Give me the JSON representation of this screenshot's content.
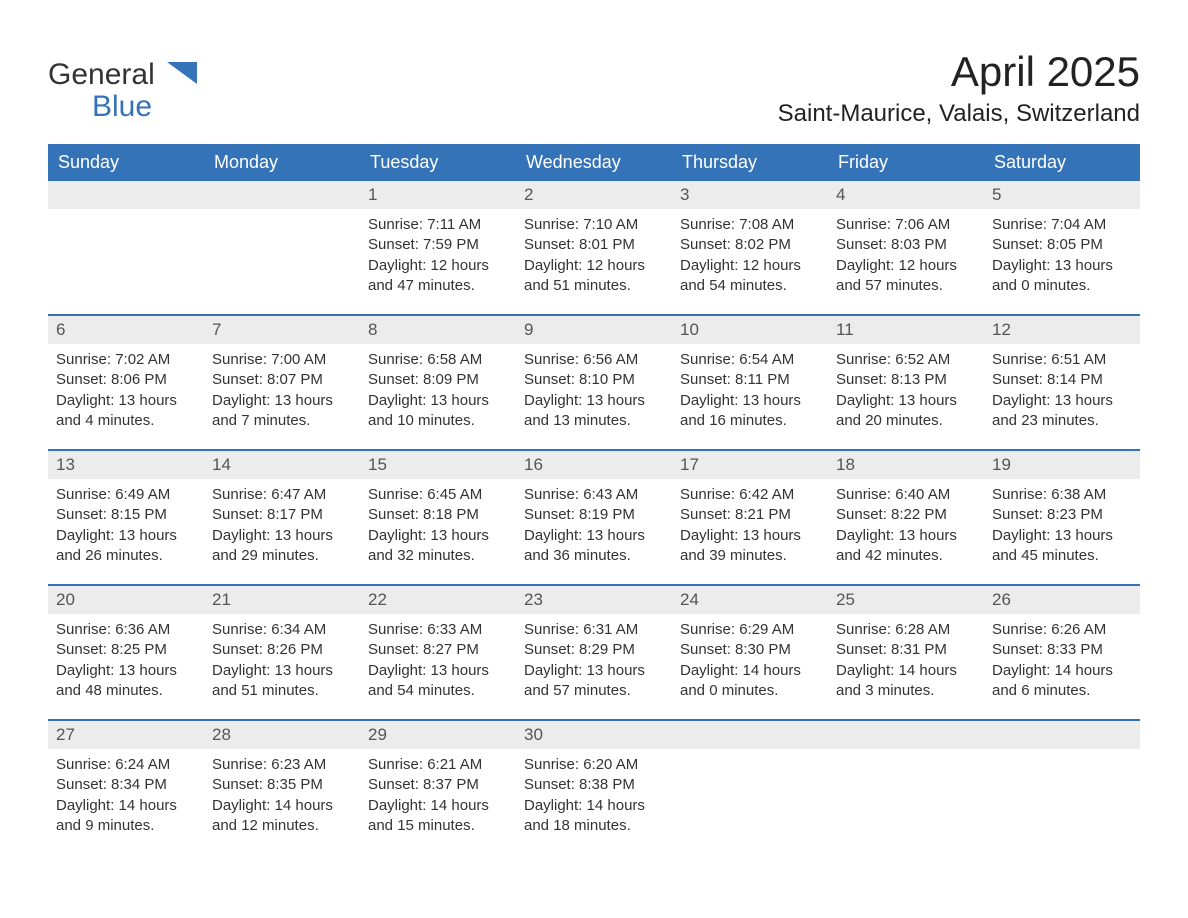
{
  "logo": {
    "text1": "General",
    "text2": "Blue",
    "color_general": "#333333",
    "color_blue": "#3573b9"
  },
  "title": "April 2025",
  "location": "Saint-Maurice, Valais, Switzerland",
  "colors": {
    "header_bg": "#3573b9",
    "header_fg": "#ffffff",
    "daynum_bg": "#ececec",
    "text": "#333333",
    "bg": "#ffffff"
  },
  "day_names": [
    "Sunday",
    "Monday",
    "Tuesday",
    "Wednesday",
    "Thursday",
    "Friday",
    "Saturday"
  ],
  "labels": {
    "sunrise": "Sunrise:",
    "sunset": "Sunset:",
    "daylight": "Daylight:"
  },
  "weeks": [
    [
      null,
      null,
      {
        "n": "1",
        "sunrise": "7:11 AM",
        "sunset": "7:59 PM",
        "daylight": "12 hours and 47 minutes."
      },
      {
        "n": "2",
        "sunrise": "7:10 AM",
        "sunset": "8:01 PM",
        "daylight": "12 hours and 51 minutes."
      },
      {
        "n": "3",
        "sunrise": "7:08 AM",
        "sunset": "8:02 PM",
        "daylight": "12 hours and 54 minutes."
      },
      {
        "n": "4",
        "sunrise": "7:06 AM",
        "sunset": "8:03 PM",
        "daylight": "12 hours and 57 minutes."
      },
      {
        "n": "5",
        "sunrise": "7:04 AM",
        "sunset": "8:05 PM",
        "daylight": "13 hours and 0 minutes."
      }
    ],
    [
      {
        "n": "6",
        "sunrise": "7:02 AM",
        "sunset": "8:06 PM",
        "daylight": "13 hours and 4 minutes."
      },
      {
        "n": "7",
        "sunrise": "7:00 AM",
        "sunset": "8:07 PM",
        "daylight": "13 hours and 7 minutes."
      },
      {
        "n": "8",
        "sunrise": "6:58 AM",
        "sunset": "8:09 PM",
        "daylight": "13 hours and 10 minutes."
      },
      {
        "n": "9",
        "sunrise": "6:56 AM",
        "sunset": "8:10 PM",
        "daylight": "13 hours and 13 minutes."
      },
      {
        "n": "10",
        "sunrise": "6:54 AM",
        "sunset": "8:11 PM",
        "daylight": "13 hours and 16 minutes."
      },
      {
        "n": "11",
        "sunrise": "6:52 AM",
        "sunset": "8:13 PM",
        "daylight": "13 hours and 20 minutes."
      },
      {
        "n": "12",
        "sunrise": "6:51 AM",
        "sunset": "8:14 PM",
        "daylight": "13 hours and 23 minutes."
      }
    ],
    [
      {
        "n": "13",
        "sunrise": "6:49 AM",
        "sunset": "8:15 PM",
        "daylight": "13 hours and 26 minutes."
      },
      {
        "n": "14",
        "sunrise": "6:47 AM",
        "sunset": "8:17 PM",
        "daylight": "13 hours and 29 minutes."
      },
      {
        "n": "15",
        "sunrise": "6:45 AM",
        "sunset": "8:18 PM",
        "daylight": "13 hours and 32 minutes."
      },
      {
        "n": "16",
        "sunrise": "6:43 AM",
        "sunset": "8:19 PM",
        "daylight": "13 hours and 36 minutes."
      },
      {
        "n": "17",
        "sunrise": "6:42 AM",
        "sunset": "8:21 PM",
        "daylight": "13 hours and 39 minutes."
      },
      {
        "n": "18",
        "sunrise": "6:40 AM",
        "sunset": "8:22 PM",
        "daylight": "13 hours and 42 minutes."
      },
      {
        "n": "19",
        "sunrise": "6:38 AM",
        "sunset": "8:23 PM",
        "daylight": "13 hours and 45 minutes."
      }
    ],
    [
      {
        "n": "20",
        "sunrise": "6:36 AM",
        "sunset": "8:25 PM",
        "daylight": "13 hours and 48 minutes."
      },
      {
        "n": "21",
        "sunrise": "6:34 AM",
        "sunset": "8:26 PM",
        "daylight": "13 hours and 51 minutes."
      },
      {
        "n": "22",
        "sunrise": "6:33 AM",
        "sunset": "8:27 PM",
        "daylight": "13 hours and 54 minutes."
      },
      {
        "n": "23",
        "sunrise": "6:31 AM",
        "sunset": "8:29 PM",
        "daylight": "13 hours and 57 minutes."
      },
      {
        "n": "24",
        "sunrise": "6:29 AM",
        "sunset": "8:30 PM",
        "daylight": "14 hours and 0 minutes."
      },
      {
        "n": "25",
        "sunrise": "6:28 AM",
        "sunset": "8:31 PM",
        "daylight": "14 hours and 3 minutes."
      },
      {
        "n": "26",
        "sunrise": "6:26 AM",
        "sunset": "8:33 PM",
        "daylight": "14 hours and 6 minutes."
      }
    ],
    [
      {
        "n": "27",
        "sunrise": "6:24 AM",
        "sunset": "8:34 PM",
        "daylight": "14 hours and 9 minutes."
      },
      {
        "n": "28",
        "sunrise": "6:23 AM",
        "sunset": "8:35 PM",
        "daylight": "14 hours and 12 minutes."
      },
      {
        "n": "29",
        "sunrise": "6:21 AM",
        "sunset": "8:37 PM",
        "daylight": "14 hours and 15 minutes."
      },
      {
        "n": "30",
        "sunrise": "6:20 AM",
        "sunset": "8:38 PM",
        "daylight": "14 hours and 18 minutes."
      },
      null,
      null,
      null
    ]
  ]
}
